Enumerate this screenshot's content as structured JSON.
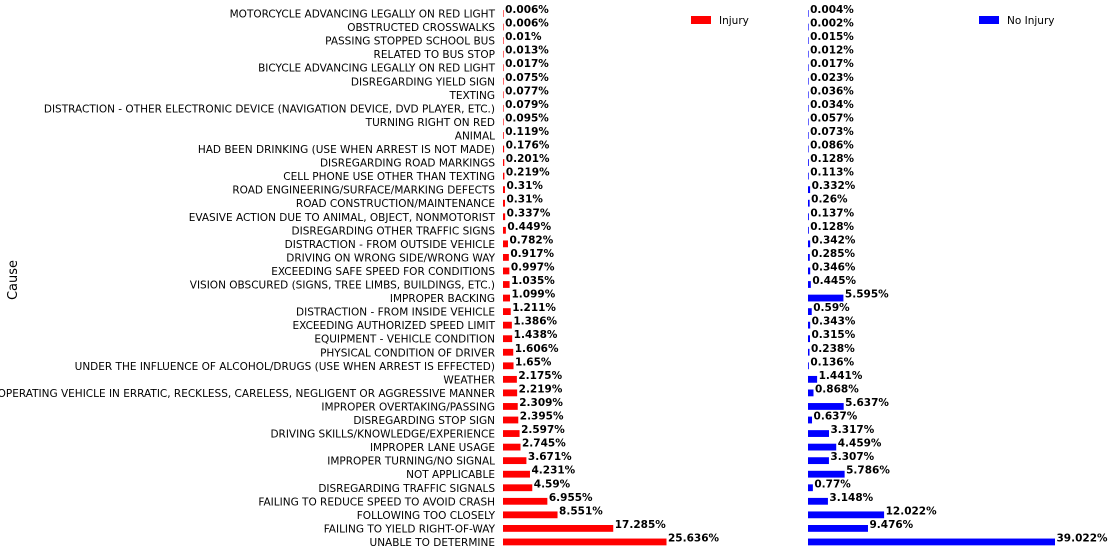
{
  "chart_data": {
    "type": "bar",
    "orientation": "horizontal",
    "ylabel": "Cause",
    "categories": [
      "MOTORCYCLE ADVANCING LEGALLY ON RED LIGHT",
      "OBSTRUCTED CROSSWALKS",
      "PASSING STOPPED SCHOOL BUS",
      "RELATED TO BUS STOP",
      "BICYCLE ADVANCING LEGALLY ON RED LIGHT",
      "DISREGARDING YIELD SIGN",
      "TEXTING",
      "DISTRACTION - OTHER ELECTRONIC DEVICE (NAVIGATION DEVICE, DVD PLAYER, ETC.)",
      "TURNING RIGHT ON RED",
      "ANIMAL",
      "HAD BEEN DRINKING (USE WHEN ARREST IS NOT MADE)",
      "DISREGARDING ROAD MARKINGS",
      "CELL PHONE USE OTHER THAN TEXTING",
      "ROAD ENGINEERING/SURFACE/MARKING DEFECTS",
      "ROAD CONSTRUCTION/MAINTENANCE",
      "EVASIVE ACTION DUE TO ANIMAL, OBJECT, NONMOTORIST",
      "DISREGARDING OTHER TRAFFIC SIGNS",
      "DISTRACTION - FROM OUTSIDE VEHICLE",
      "DRIVING ON WRONG SIDE/WRONG WAY",
      "EXCEEDING SAFE SPEED FOR CONDITIONS",
      "VISION OBSCURED (SIGNS, TREE LIMBS, BUILDINGS, ETC.)",
      "IMPROPER BACKING",
      "DISTRACTION - FROM INSIDE VEHICLE",
      "EXCEEDING AUTHORIZED SPEED LIMIT",
      "EQUIPMENT - VEHICLE CONDITION",
      "PHYSICAL CONDITION OF DRIVER",
      "UNDER THE INFLUENCE OF ALCOHOL/DRUGS (USE WHEN ARREST IS EFFECTED)",
      "WEATHER",
      "OPERATING VEHICLE IN ERRATIC, RECKLESS, CARELESS, NEGLIGENT OR AGGRESSIVE MANNER",
      "IMPROPER OVERTAKING/PASSING",
      "DISREGARDING STOP SIGN",
      "DRIVING SKILLS/KNOWLEDGE/EXPERIENCE",
      "IMPROPER LANE USAGE",
      "IMPROPER TURNING/NO SIGNAL",
      "NOT APPLICABLE",
      "DISREGARDING TRAFFIC SIGNALS",
      "FAILING TO REDUCE SPEED TO AVOID CRASH",
      "FOLLOWING TOO CLOSELY",
      "FAILING TO YIELD RIGHT-OF-WAY",
      "UNABLE TO DETERMINE"
    ],
    "series": [
      {
        "name": "Injury",
        "color": "#ff0000",
        "values": [
          0.006,
          0.006,
          0.01,
          0.013,
          0.017,
          0.075,
          0.077,
          0.079,
          0.095,
          0.119,
          0.176,
          0.201,
          0.219,
          0.31,
          0.31,
          0.337,
          0.449,
          0.782,
          0.917,
          0.997,
          1.035,
          1.099,
          1.211,
          1.386,
          1.438,
          1.606,
          1.65,
          2.175,
          2.219,
          2.309,
          2.395,
          2.597,
          2.745,
          3.671,
          4.231,
          4.59,
          6.955,
          8.551,
          17.285,
          25.636
        ],
        "labels": [
          "0.006%",
          "0.006%",
          "0.01%",
          "0.013%",
          "0.017%",
          "0.075%",
          "0.077%",
          "0.079%",
          "0.095%",
          "0.119%",
          "0.176%",
          "0.201%",
          "0.219%",
          "0.31%",
          "0.31%",
          "0.337%",
          "0.449%",
          "0.782%",
          "0.917%",
          "0.997%",
          "1.035%",
          "1.099%",
          "1.211%",
          "1.386%",
          "1.438%",
          "1.606%",
          "1.65%",
          "2.175%",
          "2.219%",
          "2.309%",
          "2.395%",
          "2.597%",
          "2.745%",
          "3.671%",
          "4.231%",
          "4.59%",
          "6.955%",
          "8.551%",
          "17.285%",
          "25.636%"
        ]
      },
      {
        "name": "No Injury",
        "color": "#0000ff",
        "values": [
          0.004,
          0.002,
          0.015,
          0.012,
          0.017,
          0.023,
          0.036,
          0.034,
          0.057,
          0.073,
          0.086,
          0.128,
          0.113,
          0.332,
          0.26,
          0.137,
          0.128,
          0.342,
          0.285,
          0.346,
          0.445,
          5.595,
          0.59,
          0.343,
          0.315,
          0.238,
          0.136,
          1.441,
          0.868,
          5.637,
          0.637,
          3.317,
          4.459,
          3.307,
          5.786,
          0.77,
          3.148,
          12.022,
          9.476,
          39.022
        ],
        "labels": [
          "0.004%",
          "0.002%",
          "0.015%",
          "0.012%",
          "0.017%",
          "0.023%",
          "0.036%",
          "0.034%",
          "0.057%",
          "0.073%",
          "0.086%",
          "0.128%",
          "0.113%",
          "0.332%",
          "0.26%",
          "0.137%",
          "0.128%",
          "0.342%",
          "0.285%",
          "0.346%",
          "0.445%",
          "5.595%",
          "0.59%",
          "0.343%",
          "0.315%",
          "0.238%",
          "0.136%",
          "1.441%",
          "0.868%",
          "5.637%",
          "0.637%",
          "3.317%",
          "4.459%",
          "3.307%",
          "5.786%",
          "0.77%",
          "3.148%",
          "12.022%",
          "9.476%",
          "39.022%"
        ]
      }
    ],
    "legend": [
      {
        "label": "Injury",
        "position": "top-right"
      },
      {
        "label": "No Injury",
        "position": "top-right"
      }
    ],
    "grid": false
  }
}
